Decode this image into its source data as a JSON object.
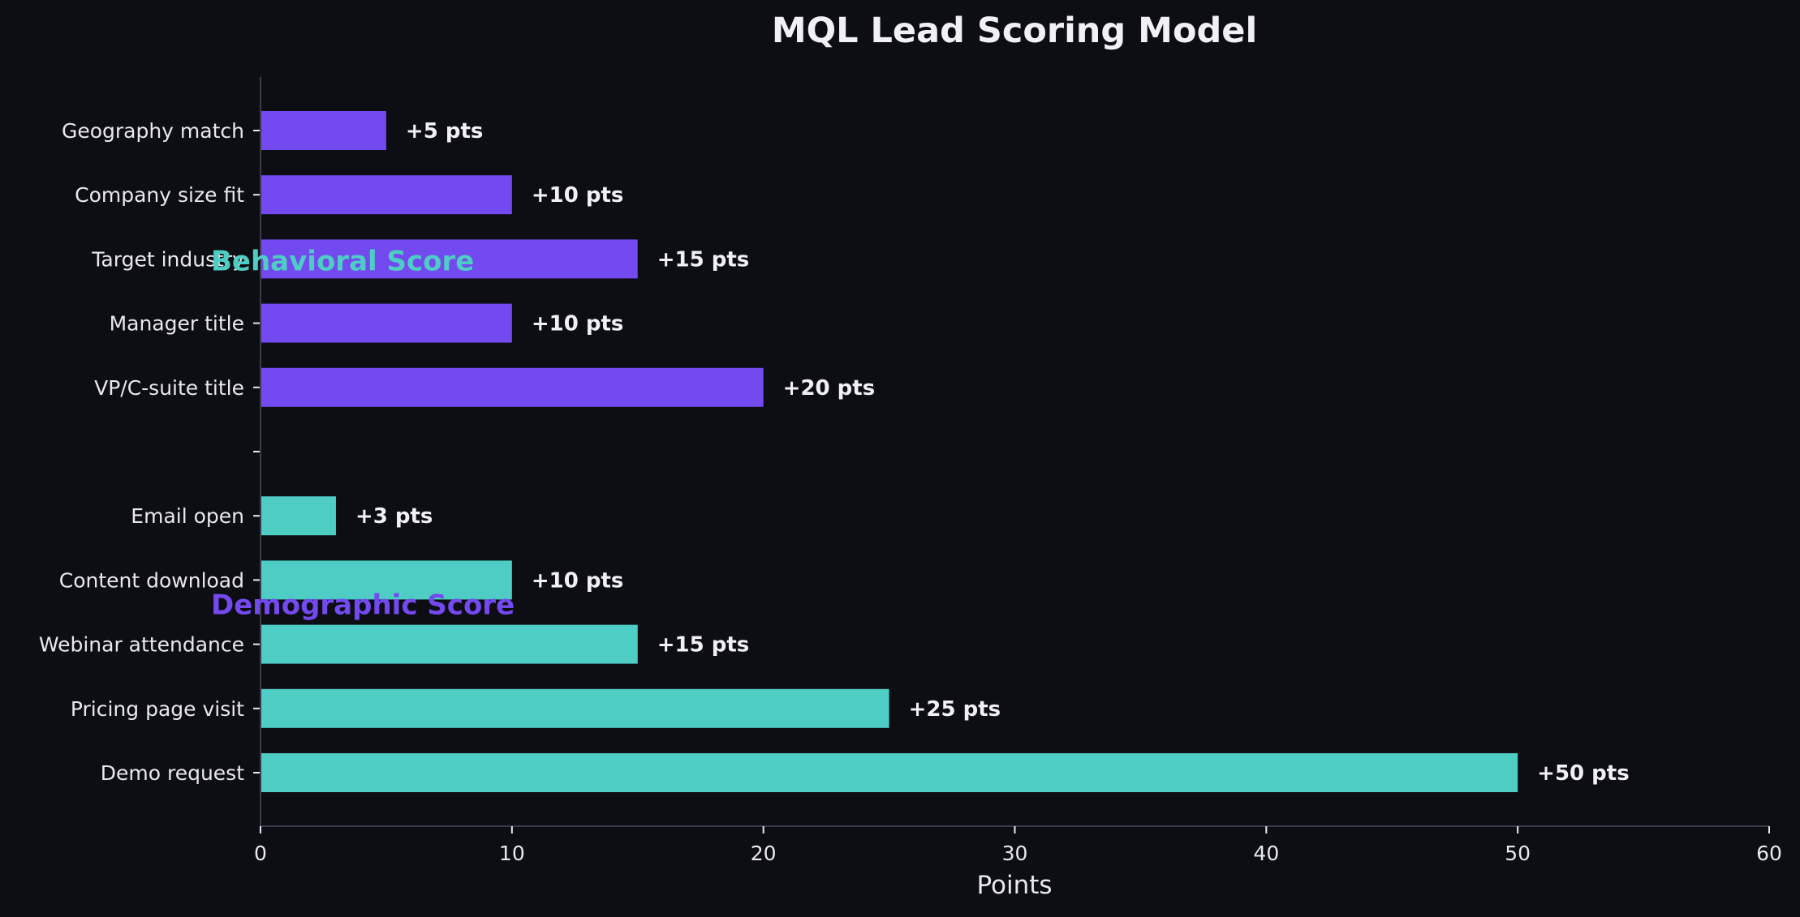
{
  "chart_data": {
    "type": "bar",
    "orientation": "horizontal",
    "title": "MQL Lead Scoring Model",
    "xlabel": "Points",
    "ylabel": "",
    "xlim": [
      0,
      60
    ],
    "xticks": [
      0,
      10,
      20,
      30,
      40,
      50,
      60
    ],
    "grid": false,
    "categories": [
      "Geography match",
      "Company size fit",
      "Target industry",
      "Manager title",
      "VP/C-suite title",
      "",
      "Email open",
      "Content download",
      "Webinar attendance",
      "Pricing page visit",
      "Demo request"
    ],
    "values": [
      5,
      10,
      15,
      10,
      20,
      null,
      3,
      10,
      15,
      25,
      50
    ],
    "value_labels": [
      "+5 pts",
      "+10 pts",
      "+15 pts",
      "+10 pts",
      "+20 pts",
      "",
      "+3 pts",
      "+10 pts",
      "+15 pts",
      "+25 pts",
      "+50 pts"
    ],
    "bar_colors": [
      "#7349f0",
      "#7349f0",
      "#7349f0",
      "#7349f0",
      "#7349f0",
      "",
      "#4ecdc4",
      "#4ecdc4",
      "#4ecdc4",
      "#4ecdc4",
      "#4ecdc4"
    ],
    "annotations": [
      {
        "text": "Behavioral Score",
        "color": "#4ecdc4",
        "category": "Target industry"
      },
      {
        "text": "Demographic Score",
        "color": "#7349f0",
        "category": "Content download"
      }
    ],
    "colors": {
      "background": "#0d0e14",
      "axis": "#3a3a4a",
      "text": "#e8e8ee"
    }
  }
}
